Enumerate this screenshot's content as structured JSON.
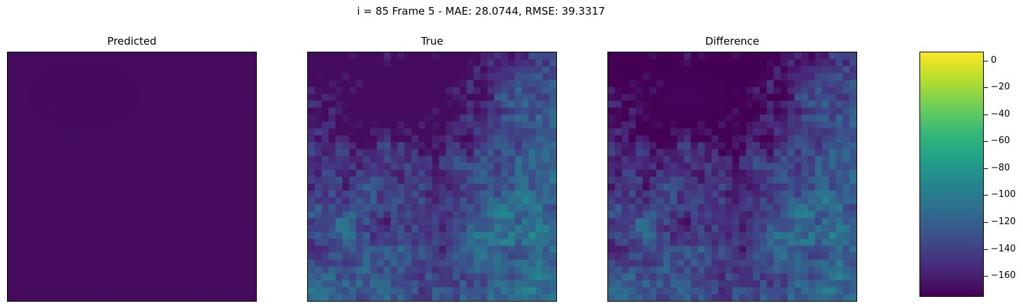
{
  "figure": {
    "suptitle": "i = 85 Frame 5 - MAE: 28.0744, RMSE: 39.3317"
  },
  "chart_data": [
    {
      "type": "heatmap",
      "title": "Predicted",
      "grid_size": [
        36,
        36
      ],
      "description": "near-uniform field around -170 with a slightly darker blob near the upper left",
      "value_range": [
        -175,
        -165
      ],
      "typical_value": -170
    },
    {
      "type": "heatmap",
      "title": "True",
      "grid_size": [
        36,
        36
      ],
      "value_range": [
        -170,
        -10
      ]
    },
    {
      "type": "heatmap",
      "title": "Difference",
      "grid_size": [
        36,
        36
      ],
      "value_range": [
        -170,
        5
      ]
    },
    {
      "type": "colorbar",
      "colormap": "viridis",
      "range": [
        -175,
        6
      ],
      "ticks": [
        0,
        -20,
        -40,
        -60,
        -80,
        -100,
        -120,
        -140,
        -160
      ],
      "tick_labels": [
        "0",
        "−20",
        "−40",
        "−60",
        "−80",
        "−100",
        "−120",
        "−140",
        "−160"
      ]
    }
  ],
  "colors": {
    "viridis": [
      "#440154",
      "#482878",
      "#3e4989",
      "#31688e",
      "#26828e",
      "#1f9e89",
      "#35b779",
      "#6ece58",
      "#b5de2b",
      "#fde725"
    ]
  }
}
